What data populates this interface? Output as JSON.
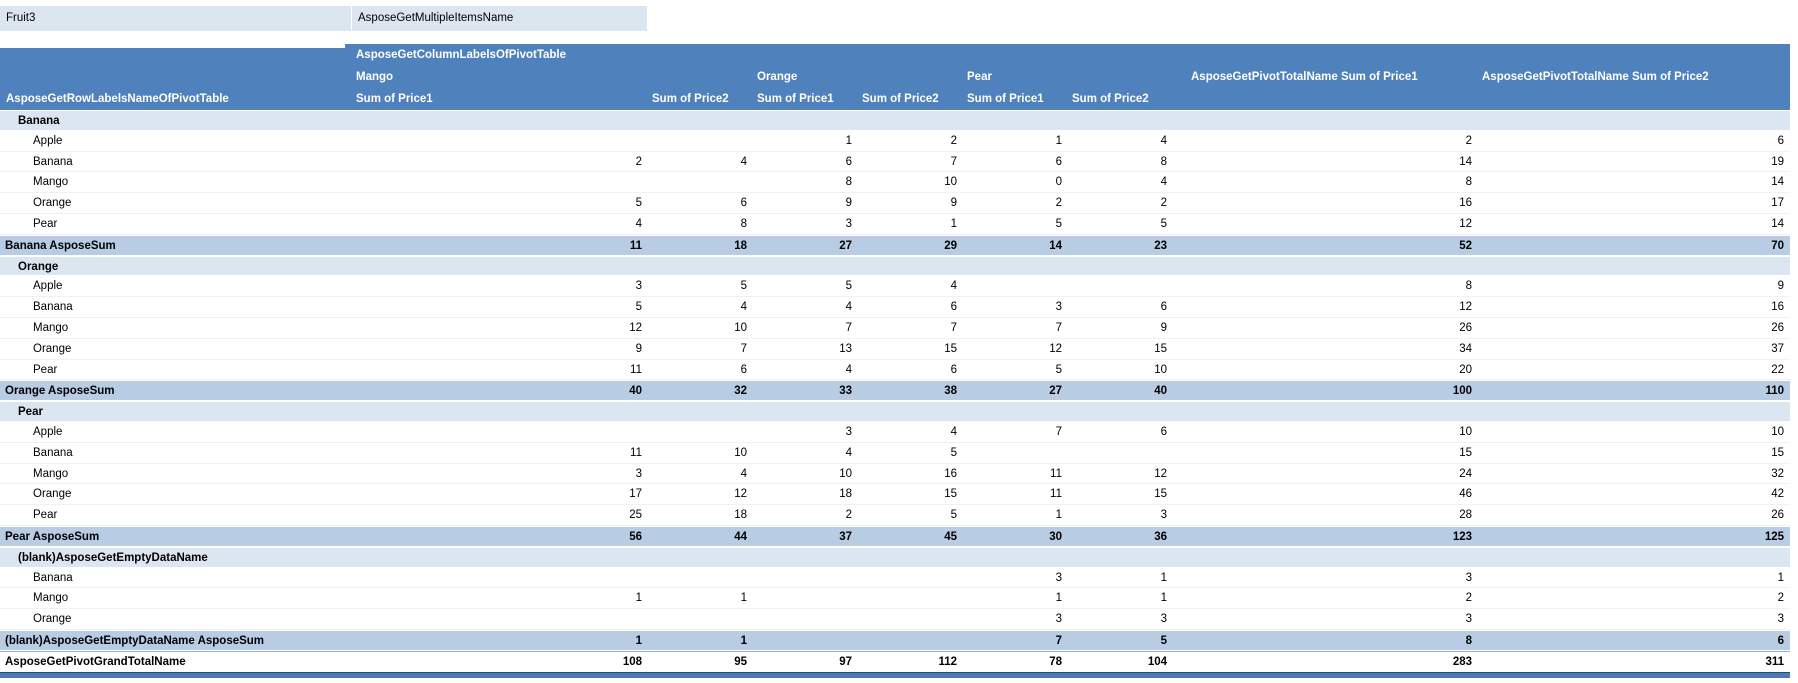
{
  "filter_bar": {
    "field": "Fruit3",
    "value": "AsposeGetMultipleItemsName"
  },
  "pivot": {
    "column_labels_title": "AsposeGetColumnLabelsOfPivotTable",
    "row_labels_title": "AsposeGetRowLabelsNameOfPivotTable",
    "column_groups": [
      {
        "label": "Mango",
        "sub": [
          "Sum of Price1",
          "Sum of Price2"
        ]
      },
      {
        "label": "Orange",
        "sub": [
          "Sum of Price1",
          "Sum of Price2"
        ]
      },
      {
        "label": "Pear",
        "sub": [
          "Sum of Price1",
          "Sum of Price2"
        ]
      }
    ],
    "total_columns": [
      "AsposeGetPivotTotalName Sum of Price1",
      "AsposeGetPivotTotalName Sum of Price2"
    ],
    "rows": [
      {
        "label": "Banana",
        "type": "group",
        "values": [
          "",
          "",
          "",
          "",
          "",
          "",
          "",
          ""
        ]
      },
      {
        "label": "Apple",
        "type": "item",
        "values": [
          "",
          "",
          "1",
          "2",
          "1",
          "4",
          "2",
          "6"
        ]
      },
      {
        "label": "Banana",
        "type": "item",
        "values": [
          "2",
          "4",
          "6",
          "7",
          "6",
          "8",
          "14",
          "19"
        ]
      },
      {
        "label": "Mango",
        "type": "item",
        "values": [
          "",
          "",
          "8",
          "10",
          "0",
          "4",
          "8",
          "14"
        ]
      },
      {
        "label": "Orange",
        "type": "item",
        "values": [
          "5",
          "6",
          "9",
          "9",
          "2",
          "2",
          "16",
          "17"
        ]
      },
      {
        "label": "Pear",
        "type": "item",
        "values": [
          "4",
          "8",
          "3",
          "1",
          "5",
          "5",
          "12",
          "14"
        ]
      },
      {
        "label": "Banana AsposeSum",
        "type": "sum",
        "values": [
          "11",
          "18",
          "27",
          "29",
          "14",
          "23",
          "52",
          "70"
        ]
      },
      {
        "label": "Orange",
        "type": "group",
        "values": [
          "",
          "",
          "",
          "",
          "",
          "",
          "",
          ""
        ]
      },
      {
        "label": "Apple",
        "type": "item",
        "values": [
          "3",
          "5",
          "5",
          "4",
          "",
          "",
          "8",
          "9"
        ]
      },
      {
        "label": "Banana",
        "type": "item",
        "values": [
          "5",
          "4",
          "4",
          "6",
          "3",
          "6",
          "12",
          "16"
        ]
      },
      {
        "label": "Mango",
        "type": "item",
        "values": [
          "12",
          "10",
          "7",
          "7",
          "7",
          "9",
          "26",
          "26"
        ]
      },
      {
        "label": "Orange",
        "type": "item",
        "values": [
          "9",
          "7",
          "13",
          "15",
          "12",
          "15",
          "34",
          "37"
        ]
      },
      {
        "label": "Pear",
        "type": "item",
        "values": [
          "11",
          "6",
          "4",
          "6",
          "5",
          "10",
          "20",
          "22"
        ]
      },
      {
        "label": "Orange AsposeSum",
        "type": "sum",
        "values": [
          "40",
          "32",
          "33",
          "38",
          "27",
          "40",
          "100",
          "110"
        ]
      },
      {
        "label": "Pear",
        "type": "group",
        "values": [
          "",
          "",
          "",
          "",
          "",
          "",
          "",
          ""
        ]
      },
      {
        "label": "Apple",
        "type": "item",
        "values": [
          "",
          "",
          "3",
          "4",
          "7",
          "6",
          "10",
          "10"
        ]
      },
      {
        "label": "Banana",
        "type": "item",
        "values": [
          "11",
          "10",
          "4",
          "5",
          "",
          "",
          "15",
          "15"
        ]
      },
      {
        "label": "Mango",
        "type": "item",
        "values": [
          "3",
          "4",
          "10",
          "16",
          "11",
          "12",
          "24",
          "32"
        ]
      },
      {
        "label": "Orange",
        "type": "item",
        "values": [
          "17",
          "12",
          "18",
          "15",
          "11",
          "15",
          "46",
          "42"
        ]
      },
      {
        "label": "Pear",
        "type": "item",
        "values": [
          "25",
          "18",
          "2",
          "5",
          "1",
          "3",
          "28",
          "26"
        ]
      },
      {
        "label": "Pear AsposeSum",
        "type": "sum",
        "values": [
          "56",
          "44",
          "37",
          "45",
          "30",
          "36",
          "123",
          "125"
        ]
      },
      {
        "label": "(blank)AsposeGetEmptyDataName",
        "type": "group",
        "values": [
          "",
          "",
          "",
          "",
          "",
          "",
          "",
          ""
        ]
      },
      {
        "label": "Banana",
        "type": "item",
        "values": [
          "",
          "",
          "",
          "",
          "3",
          "1",
          "3",
          "1"
        ]
      },
      {
        "label": "Mango",
        "type": "item",
        "values": [
          "1",
          "1",
          "",
          "",
          "1",
          "1",
          "2",
          "2"
        ]
      },
      {
        "label": "Orange",
        "type": "item",
        "values": [
          "",
          "",
          "",
          "",
          "3",
          "3",
          "3",
          "3"
        ]
      },
      {
        "label": "(blank)AsposeGetEmptyDataName AsposeSum",
        "type": "sum",
        "values": [
          "1",
          "1",
          "",
          "",
          "7",
          "5",
          "8",
          "6"
        ]
      },
      {
        "label": "AsposeGetPivotGrandTotalName",
        "type": "grand",
        "values": [
          "108",
          "95",
          "97",
          "112",
          "78",
          "104",
          "283",
          "311"
        ]
      }
    ],
    "colors": {
      "header_bg": "#4F81BD",
      "header_text": "#FFFFFF",
      "group_row_bg": "#DCE6F1",
      "subtotal_row_bg": "#B8CCE4",
      "filter_bg": "#DCE6F1",
      "bottom_border": "#1F4E79"
    }
  }
}
